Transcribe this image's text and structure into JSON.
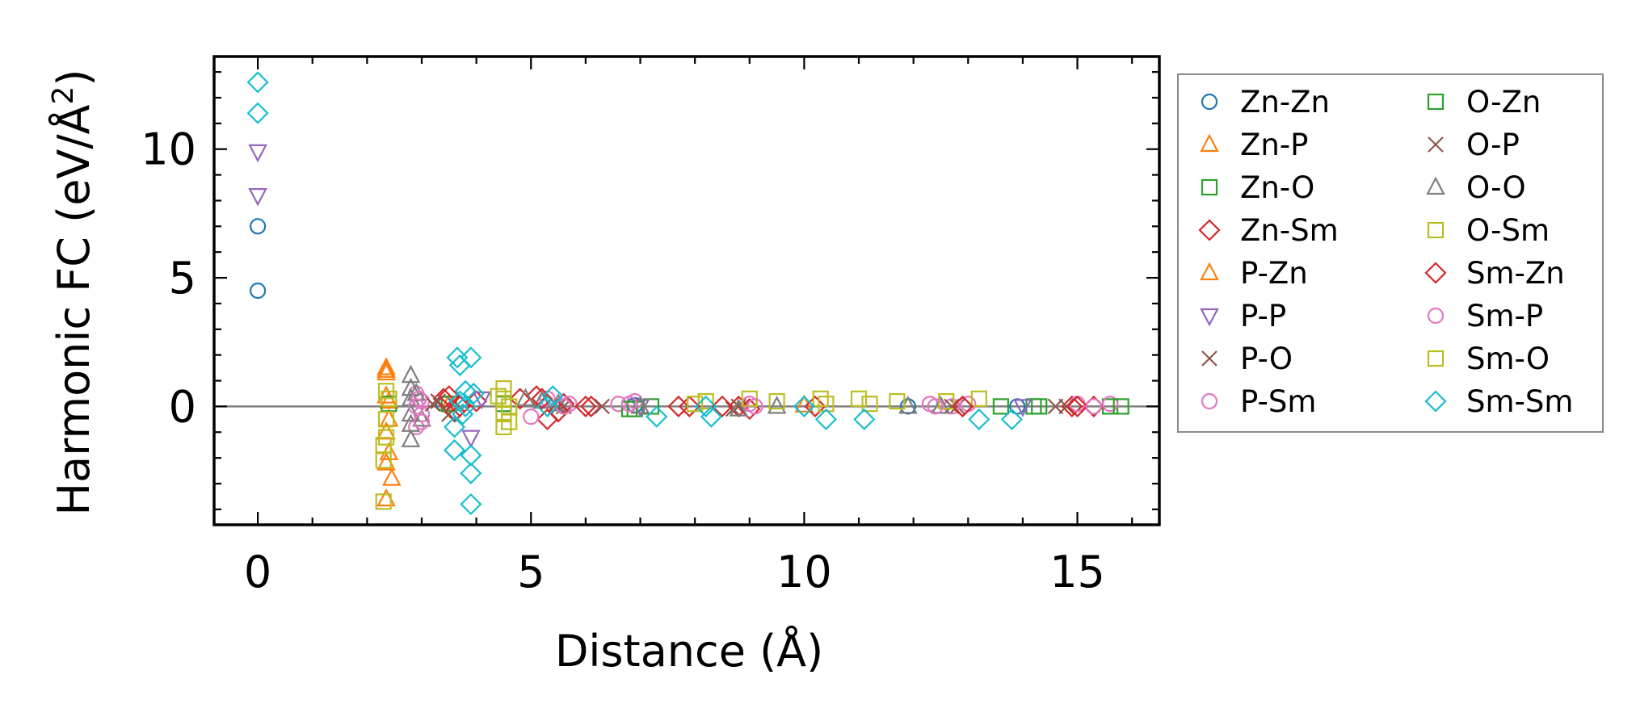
{
  "chart_data": {
    "type": "scatter",
    "title": "",
    "xlabel": "Distance (Å)",
    "ylabel_main": "Harmonic FC (eV/Å",
    "ylabel_sup": "2",
    "ylabel_close": ")",
    "xlim": [
      -0.8,
      16.5
    ],
    "ylim": [
      -4.6,
      13.6
    ],
    "xticks": [
      0,
      5,
      10,
      15
    ],
    "yticks": [
      0,
      5,
      10
    ],
    "grid": false,
    "zero_line": true,
    "legend_position": "outside-right",
    "series": [
      {
        "name": "Zn-Zn",
        "marker": "circle",
        "color": "#1f77b4",
        "points": [
          [
            0,
            7.0
          ],
          [
            0,
            4.5
          ],
          [
            3.4,
            0.1
          ],
          [
            6.9,
            0.05
          ],
          [
            11.9,
            0.0
          ],
          [
            13.9,
            0.0
          ]
        ]
      },
      {
        "name": "Zn-P",
        "marker": "triangle-up",
        "color": "#ff7f0e",
        "points": [
          [
            2.35,
            1.5
          ],
          [
            2.35,
            1.3
          ],
          [
            2.35,
            0.4
          ],
          [
            2.35,
            -1.0
          ],
          [
            2.35,
            -2.2
          ],
          [
            2.35,
            -3.6
          ],
          [
            2.4,
            -1.8
          ],
          [
            3.5,
            0.1
          ],
          [
            10.0,
            0.05
          ]
        ]
      },
      {
        "name": "Zn-O",
        "marker": "square",
        "color": "#2ca02c",
        "points": [
          [
            3.5,
            0.1
          ],
          [
            6.9,
            -0.1
          ],
          [
            7.2,
            0.0
          ],
          [
            13.6,
            0.0
          ],
          [
            14.2,
            0.0
          ],
          [
            15.6,
            0.0
          ]
        ]
      },
      {
        "name": "Zn-Sm",
        "marker": "diamond",
        "color": "#d62728",
        "points": [
          [
            3.4,
            0.3
          ],
          [
            3.6,
            -0.2
          ],
          [
            4.0,
            0.2
          ],
          [
            4.8,
            0.3
          ],
          [
            5.1,
            0.4
          ],
          [
            5.3,
            -0.5
          ],
          [
            5.6,
            0.1
          ],
          [
            6.1,
            0.0
          ],
          [
            7.7,
            0.0
          ],
          [
            8.8,
            0.0
          ],
          [
            9.0,
            -0.1
          ],
          [
            10.2,
            0.0
          ],
          [
            12.9,
            0.0
          ],
          [
            14.9,
            0.0
          ],
          [
            15.3,
            0.0
          ]
        ]
      },
      {
        "name": "P-Zn",
        "marker": "triangle-up",
        "color": "#ff7f0e",
        "points": [
          [
            2.35,
            1.4
          ],
          [
            2.4,
            0.2
          ],
          [
            2.45,
            -2.8
          ],
          [
            2.4,
            -0.5
          ]
        ]
      },
      {
        "name": "P-P",
        "marker": "triangle-down",
        "color": "#9467bd",
        "points": [
          [
            0,
            9.9
          ],
          [
            0,
            8.2
          ],
          [
            3.9,
            -1.2
          ],
          [
            4.1,
            0.3
          ],
          [
            7.0,
            0.0
          ],
          [
            14.0,
            0.0
          ]
        ]
      },
      {
        "name": "P-O",
        "marker": "x",
        "color": "#8c564b",
        "points": [
          [
            3.3,
            0.2
          ],
          [
            3.5,
            -0.3
          ],
          [
            5.5,
            0.0
          ],
          [
            6.3,
            0.0
          ],
          [
            8.8,
            0.0
          ],
          [
            12.8,
            0.0
          ],
          [
            14.6,
            0.0
          ]
        ]
      },
      {
        "name": "P-Sm",
        "marker": "circle",
        "color": "#e377c2",
        "points": [
          [
            2.9,
            0.5
          ],
          [
            3.0,
            -0.3
          ],
          [
            2.9,
            -0.8
          ],
          [
            3.0,
            0.2
          ],
          [
            5.0,
            -0.4
          ],
          [
            5.3,
            0.3
          ],
          [
            5.7,
            0.1
          ],
          [
            6.6,
            0.1
          ],
          [
            6.9,
            0.2
          ],
          [
            9.0,
            0.1
          ],
          [
            12.3,
            0.1
          ],
          [
            12.7,
            0.0
          ],
          [
            13.0,
            0.1
          ],
          [
            15.0,
            0.1
          ],
          [
            15.6,
            0.1
          ]
        ]
      },
      {
        "name": "O-Zn",
        "marker": "square",
        "color": "#2ca02c",
        "points": [
          [
            2.4,
            0.1
          ],
          [
            4.5,
            0.1
          ],
          [
            6.8,
            -0.1
          ],
          [
            14.3,
            0.0
          ],
          [
            15.8,
            0.0
          ]
        ]
      },
      {
        "name": "O-P",
        "marker": "x",
        "color": "#8c564b",
        "points": [
          [
            3.2,
            0.1
          ],
          [
            5.6,
            0.0
          ],
          [
            8.7,
            -0.1
          ],
          [
            12.7,
            0.0
          ],
          [
            14.8,
            0.0
          ]
        ]
      },
      {
        "name": "O-O",
        "marker": "triangle-up",
        "color": "#7f7f7f",
        "points": [
          [
            2.8,
            1.2
          ],
          [
            2.8,
            0.7
          ],
          [
            2.8,
            0.3
          ],
          [
            2.8,
            -0.3
          ],
          [
            2.8,
            -0.7
          ],
          [
            2.8,
            -1.3
          ],
          [
            2.9,
            0.5
          ],
          [
            3.0,
            -0.5
          ],
          [
            4.9,
            0.3
          ],
          [
            5.2,
            0.2
          ],
          [
            5.5,
            0.1
          ],
          [
            7.0,
            0.0
          ],
          [
            8.8,
            -0.1
          ],
          [
            9.5,
            0.0
          ],
          [
            11.9,
            0.0
          ],
          [
            12.5,
            0.0
          ]
        ]
      },
      {
        "name": "O-Sm",
        "marker": "square",
        "color": "#bcbd22",
        "points": [
          [
            2.35,
            0.6
          ],
          [
            2.3,
            -1.5
          ],
          [
            2.3,
            -2.1
          ],
          [
            2.3,
            -3.7
          ],
          [
            4.5,
            0.7
          ],
          [
            4.5,
            0.3
          ],
          [
            4.5,
            -0.3
          ],
          [
            4.5,
            -0.8
          ],
          [
            8.2,
            0.2
          ],
          [
            9.0,
            0.3
          ],
          [
            9.5,
            0.2
          ],
          [
            10.3,
            0.3
          ],
          [
            11.0,
            0.3
          ],
          [
            11.7,
            0.2
          ],
          [
            12.6,
            0.2
          ],
          [
            13.2,
            0.3
          ]
        ]
      },
      {
        "name": "Sm-Zn",
        "marker": "diamond",
        "color": "#d62728",
        "points": [
          [
            3.5,
            0.4
          ],
          [
            3.7,
            0.0
          ],
          [
            5.2,
            0.3
          ],
          [
            5.5,
            -0.2
          ],
          [
            6.0,
            0.0
          ],
          [
            7.9,
            0.0
          ],
          [
            8.5,
            0.0
          ],
          [
            12.9,
            0.0
          ],
          [
            15.0,
            0.0
          ]
        ]
      },
      {
        "name": "Sm-P",
        "marker": "circle",
        "color": "#e377c2",
        "points": [
          [
            2.95,
            0.3
          ],
          [
            3.0,
            -0.6
          ],
          [
            2.9,
            0.0
          ],
          [
            5.6,
            0.0
          ],
          [
            6.8,
            0.1
          ],
          [
            9.1,
            0.0
          ],
          [
            12.4,
            0.0
          ],
          [
            15.3,
            0.0
          ]
        ]
      },
      {
        "name": "Sm-O",
        "marker": "square",
        "color": "#bcbd22",
        "points": [
          [
            2.4,
            0.3
          ],
          [
            2.35,
            -0.5
          ],
          [
            2.35,
            -1.2
          ],
          [
            4.4,
            0.4
          ],
          [
            4.6,
            0.0
          ],
          [
            4.6,
            -0.6
          ],
          [
            8.0,
            0.1
          ],
          [
            10.4,
            0.1
          ],
          [
            11.2,
            0.1
          ]
        ]
      },
      {
        "name": "Sm-Sm",
        "marker": "diamond",
        "color": "#17becf",
        "points": [
          [
            0,
            12.6
          ],
          [
            0,
            11.4
          ],
          [
            3.65,
            1.9
          ],
          [
            3.7,
            1.6
          ],
          [
            3.9,
            1.9
          ],
          [
            3.8,
            0.6
          ],
          [
            3.7,
            0.2
          ],
          [
            3.75,
            -0.3
          ],
          [
            3.6,
            -0.8
          ],
          [
            3.6,
            -1.7
          ],
          [
            3.9,
            -1.9
          ],
          [
            3.9,
            -2.6
          ],
          [
            3.9,
            -3.8
          ],
          [
            3.8,
            0.0
          ],
          [
            3.95,
            0.5
          ],
          [
            5.4,
            0.4
          ],
          [
            5.3,
            0.0
          ],
          [
            7.3,
            -0.4
          ],
          [
            8.2,
            0.0
          ],
          [
            8.3,
            -0.4
          ],
          [
            10.4,
            -0.5
          ],
          [
            11.1,
            -0.5
          ],
          [
            13.2,
            -0.5
          ],
          [
            13.8,
            -0.5
          ],
          [
            10.0,
            0.0
          ]
        ]
      }
    ]
  }
}
